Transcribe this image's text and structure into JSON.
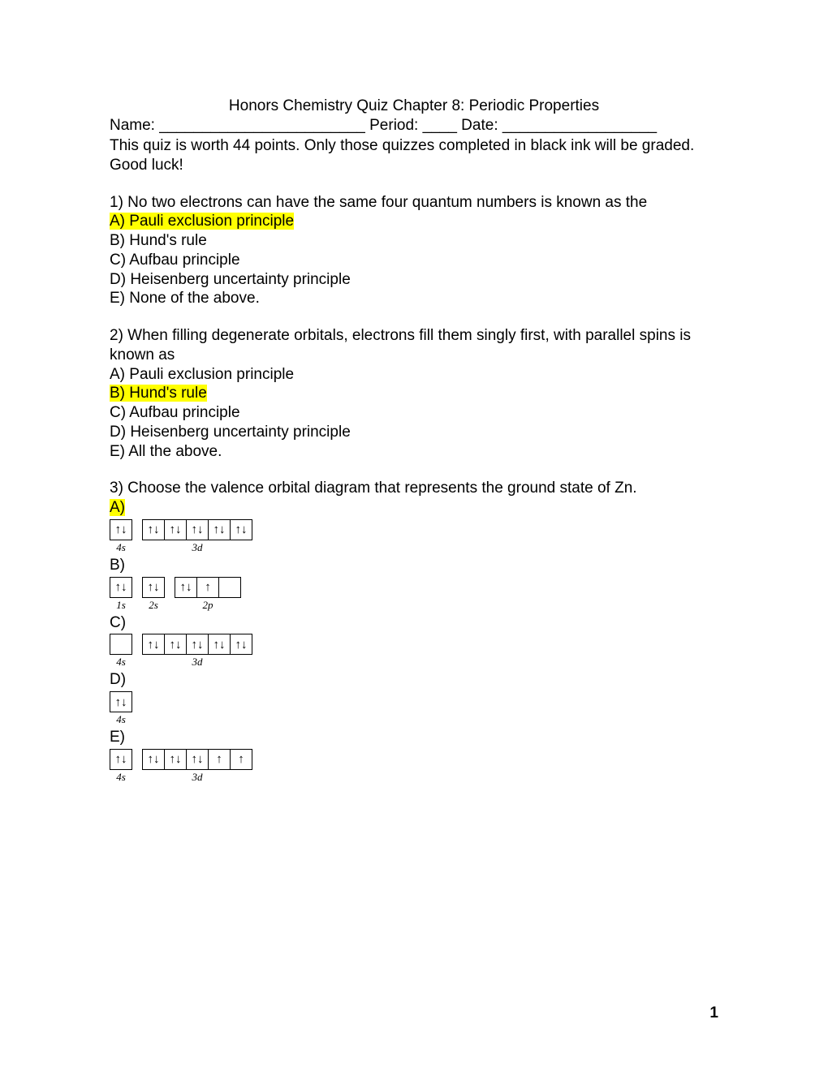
{
  "title": "Honors Chemistry Quiz Chapter 8: Periodic Properties",
  "header": {
    "name_label": "Name: ",
    "name_blank": "________________________",
    "period_label": "  Period: ",
    "period_blank": "____",
    "date_label": "  Date: ",
    "date_blank": "__________________"
  },
  "instructions": "This quiz is worth 44 points.  Only those quizzes completed in black ink will be graded.  Good luck!",
  "q1": {
    "text": "1) No two electrons can have the same four quantum numbers is known as the",
    "a": "A) Pauli exclusion principle",
    "b": "B) Hund's rule",
    "c": "C) Aufbau principle",
    "d": "D) Heisenberg uncertainty principle",
    "e": "E) None of the above.",
    "highlighted": "a"
  },
  "q2": {
    "text": "2) When filling degenerate orbitals, electrons fill them singly first, with parallel spins is known as",
    "a": "A) Pauli exclusion principle",
    "b": "B) Hund's rule",
    "c": "C) Aufbau principle",
    "d": "D) Heisenberg uncertainty principle",
    "e": "E) All the above.",
    "highlighted": "b"
  },
  "q3": {
    "text": "3) Choose the valence orbital diagram that represents the ground state of Zn.",
    "a_label": "A)",
    "b_label": "B)",
    "c_label": "C)",
    "d_label": "D)",
    "e_label": "E)",
    "highlighted": "a",
    "arrows": {
      "updown": "↑↓",
      "up": "↑",
      "empty": ""
    },
    "diagrams": {
      "a": [
        {
          "label": "4s",
          "boxes": [
            "↑↓"
          ]
        },
        {
          "label": "3d",
          "boxes": [
            "↑↓",
            "↑↓",
            "↑↓",
            "↑↓",
            "↑↓"
          ]
        }
      ],
      "b": [
        {
          "label": "1s",
          "boxes": [
            "↑↓"
          ]
        },
        {
          "label": "2s",
          "boxes": [
            "↑↓"
          ]
        },
        {
          "label": "2p",
          "boxes": [
            "↑↓",
            "↑",
            ""
          ]
        }
      ],
      "c": [
        {
          "label": "4s",
          "boxes": [
            ""
          ]
        },
        {
          "label": "3d",
          "boxes": [
            "↑↓",
            "↑↓",
            "↑↓",
            "↑↓",
            "↑↓"
          ]
        }
      ],
      "d": [
        {
          "label": "4s",
          "boxes": [
            "↑↓"
          ]
        }
      ],
      "e": [
        {
          "label": "4s",
          "boxes": [
            "↑↓"
          ]
        },
        {
          "label": "3d",
          "boxes": [
            "↑↓",
            "↑↓",
            "↑↓",
            "↑",
            "↑"
          ]
        }
      ]
    }
  },
  "page_number": "1",
  "colors": {
    "highlight": "#ffff00",
    "background": "#ffffff",
    "text": "#000000",
    "border": "#000000"
  }
}
